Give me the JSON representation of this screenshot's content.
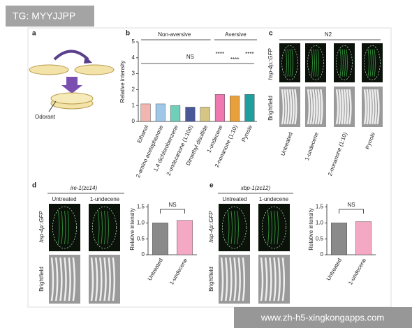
{
  "watermark": "TG: MYYJJPP",
  "footer": "www.zh-h5-xingkongapps.com",
  "panel_a": {
    "label": "a",
    "text": "Odorant"
  },
  "panel_c": {
    "label": "c",
    "title": "N2",
    "row_labels": [
      "hsp-4p::GFP",
      "Brightfield"
    ],
    "columns": [
      "Untreated",
      "1-undecene",
      "2-nonanone (1:10)",
      "Pyrrole"
    ]
  },
  "panel_d": {
    "label": "d",
    "title": "ire-1(zc14)",
    "row_labels": [
      "hsp-4p::GFP",
      "Brightfield"
    ],
    "columns": [
      "Untreated",
      "1-undecene"
    ]
  },
  "panel_e": {
    "label": "e",
    "title": "xbp-1(zc12)",
    "row_labels": [
      "hsp-4p::GFP",
      "Brightfield"
    ],
    "columns": [
      "Untreated",
      "1-undecene"
    ]
  },
  "chart_data": [
    {
      "type": "bar",
      "label": "b",
      "y_label": "Relative intensity",
      "groups": [
        "Non-aversive",
        "Aversive"
      ],
      "annotations": [
        "NS",
        "****",
        "****",
        "****"
      ],
      "categories": [
        "Ethanol",
        "2-amino acetophenone",
        "1,4 dichlorobenzene",
        "2-undecanone (1:100)",
        "Dimethyl disulfide",
        "1-undecene",
        "2-nonanone (1:10)",
        "Pyrrole"
      ],
      "values": [
        1.1,
        1.1,
        1.0,
        0.9,
        0.9,
        1.7,
        1.6,
        1.7
      ],
      "colors": [
        "#f2b6ae",
        "#9fc8e8",
        "#6fcfb8",
        "#4a5898",
        "#d6c684",
        "#ef78b0",
        "#e8a03c",
        "#1e9e9e"
      ],
      "ylim": [
        0,
        5
      ],
      "yticks": [
        0,
        1,
        2,
        3,
        4,
        5
      ]
    },
    {
      "type": "bar",
      "y_label": "Relative intensity",
      "annotations": [
        "NS"
      ],
      "categories": [
        "Untreated",
        "1-undecene"
      ],
      "values": [
        1.0,
        1.08
      ],
      "colors": [
        "#8a8a8a",
        "#f5a8c4"
      ],
      "ylim": [
        0,
        1.6
      ],
      "yticks": [
        0,
        0.5,
        {
          "value": 1,
          "label": "1.0"
        },
        1.5
      ]
    },
    {
      "type": "bar",
      "y_label": "Relative intensity",
      "annotations": [
        "NS"
      ],
      "categories": [
        "Untreated",
        "1-undecene"
      ],
      "values": [
        1.0,
        1.04
      ],
      "colors": [
        "#8a8a8a",
        "#f5a8c4"
      ],
      "ylim": [
        0,
        1.6
      ],
      "yticks": [
        0,
        0.5,
        {
          "value": 1,
          "label": "1.0"
        },
        1.5
      ]
    }
  ]
}
